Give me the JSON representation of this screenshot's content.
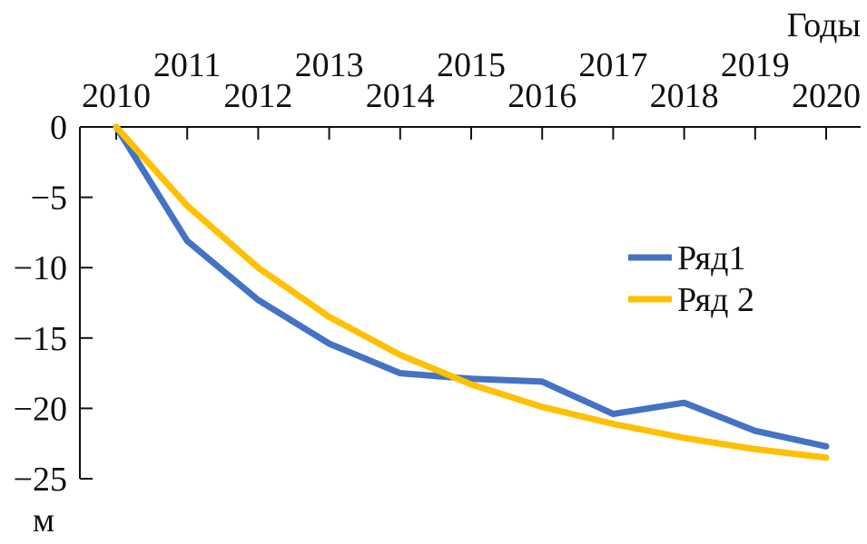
{
  "chart_data": {
    "type": "line",
    "title": "",
    "xlabel": "Годы",
    "ylabel": "м",
    "x": [
      2010,
      2011,
      2012,
      2013,
      2014,
      2015,
      2016,
      2017,
      2018,
      2019,
      2020
    ],
    "x_tick_labels": [
      "2010",
      "2011",
      "2012",
      "2013",
      "2014",
      "2015",
      "2016",
      "2017",
      "2018",
      "2019",
      "2020"
    ],
    "x_axis_position": "top",
    "ylim": [
      -25,
      0
    ],
    "y_ticks": [
      0,
      -5,
      -10,
      -15,
      -20,
      -25
    ],
    "y_tick_labels": [
      "0",
      "−5",
      "−10",
      "−15",
      "−20",
      "−25"
    ],
    "grid": false,
    "legend_position": "right",
    "series": [
      {
        "name": "Ряд1",
        "color": "#4472c4",
        "values": [
          0,
          -8.1,
          -12.3,
          -15.4,
          -17.5,
          -17.9,
          -18.1,
          -20.4,
          -19.6,
          -21.6,
          -22.7
        ]
      },
      {
        "name": "Ряд 2",
        "color": "#ffc000",
        "values": [
          0,
          -5.6,
          -10.0,
          -13.5,
          -16.2,
          -18.3,
          -19.9,
          -21.1,
          -22.1,
          -22.9,
          -23.5
        ]
      }
    ]
  }
}
